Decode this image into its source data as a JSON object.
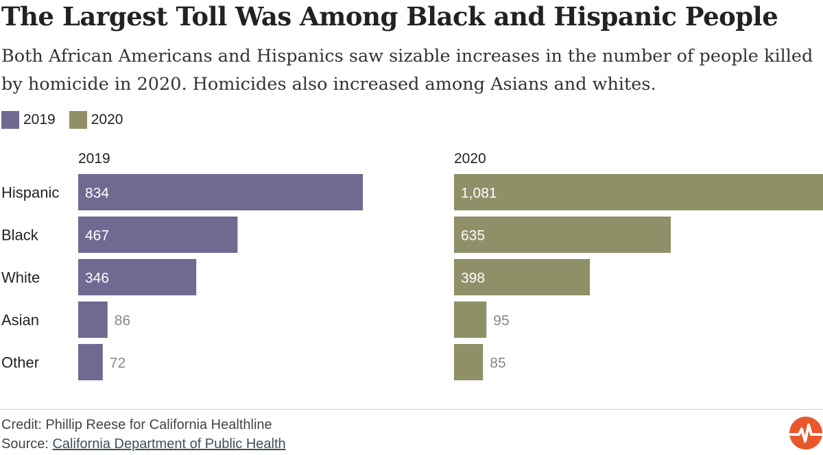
{
  "title": "The Largest Toll Was Among Black and Hispanic People",
  "subtitle": "Both African Americans and Hispanics saw sizable increases in the number of people killed by homicide in 2020. Homicides also increased among Asians and whites.",
  "legend": [
    {
      "label": "2019",
      "color": "#6e6a92"
    },
    {
      "label": "2020",
      "color": "#8f9068"
    }
  ],
  "chart_data": {
    "type": "bar",
    "orientation": "horizontal",
    "categories": [
      "Hispanic",
      "Black",
      "White",
      "Asian",
      "Other"
    ],
    "series": [
      {
        "name": "2019",
        "values": [
          834,
          467,
          346,
          86,
          72
        ],
        "labels": [
          "834",
          "467",
          "346",
          "86",
          "72"
        ],
        "color": "#6e6a92"
      },
      {
        "name": "2020",
        "values": [
          1081,
          635,
          398,
          95,
          85
        ],
        "labels": [
          "1,081",
          "635",
          "398",
          "95",
          "85"
        ],
        "color": "#8f9068"
      }
    ],
    "xlim": [
      0,
      1081
    ],
    "grid": false
  },
  "credit": "Credit: Phillip Reese for California Healthline",
  "source": {
    "prefix": "Source: ",
    "link_text": "California Department of Public Health"
  },
  "logo_icon": "heartbeat-logo-icon"
}
